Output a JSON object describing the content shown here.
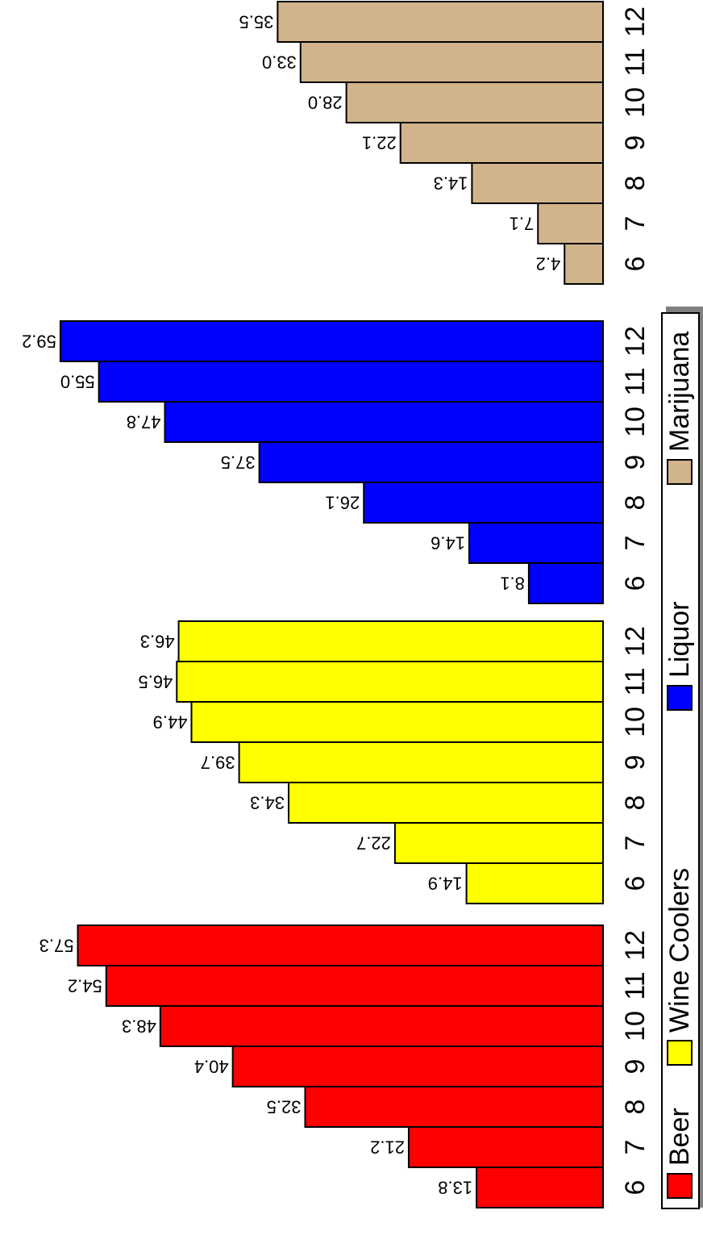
{
  "chart_data": {
    "type": "bar",
    "orientation": "horizontal",
    "categories": [
      "6",
      "7",
      "8",
      "9",
      "10",
      "11",
      "12"
    ],
    "series": [
      {
        "name": "Beer",
        "color": "#ff0000",
        "values": [
          13.8,
          21.2,
          32.5,
          40.4,
          48.3,
          54.2,
          57.3
        ]
      },
      {
        "name": "Wine Coolers",
        "color": "#ffff00",
        "values": [
          14.9,
          22.7,
          34.3,
          39.7,
          44.9,
          46.5,
          46.3
        ]
      },
      {
        "name": "Liquor",
        "color": "#0000ff",
        "values": [
          8.1,
          14.6,
          26.1,
          37.5,
          47.8,
          55.0,
          59.2
        ]
      },
      {
        "name": "Marijuana",
        "color": "#d2b48c",
        "values": [
          4.2,
          7.1,
          14.3,
          22.1,
          28.0,
          33.0,
          35.5
        ]
      }
    ],
    "value_label_format": "one-decimal",
    "legend_placement": "bottom",
    "grid": false
  }
}
